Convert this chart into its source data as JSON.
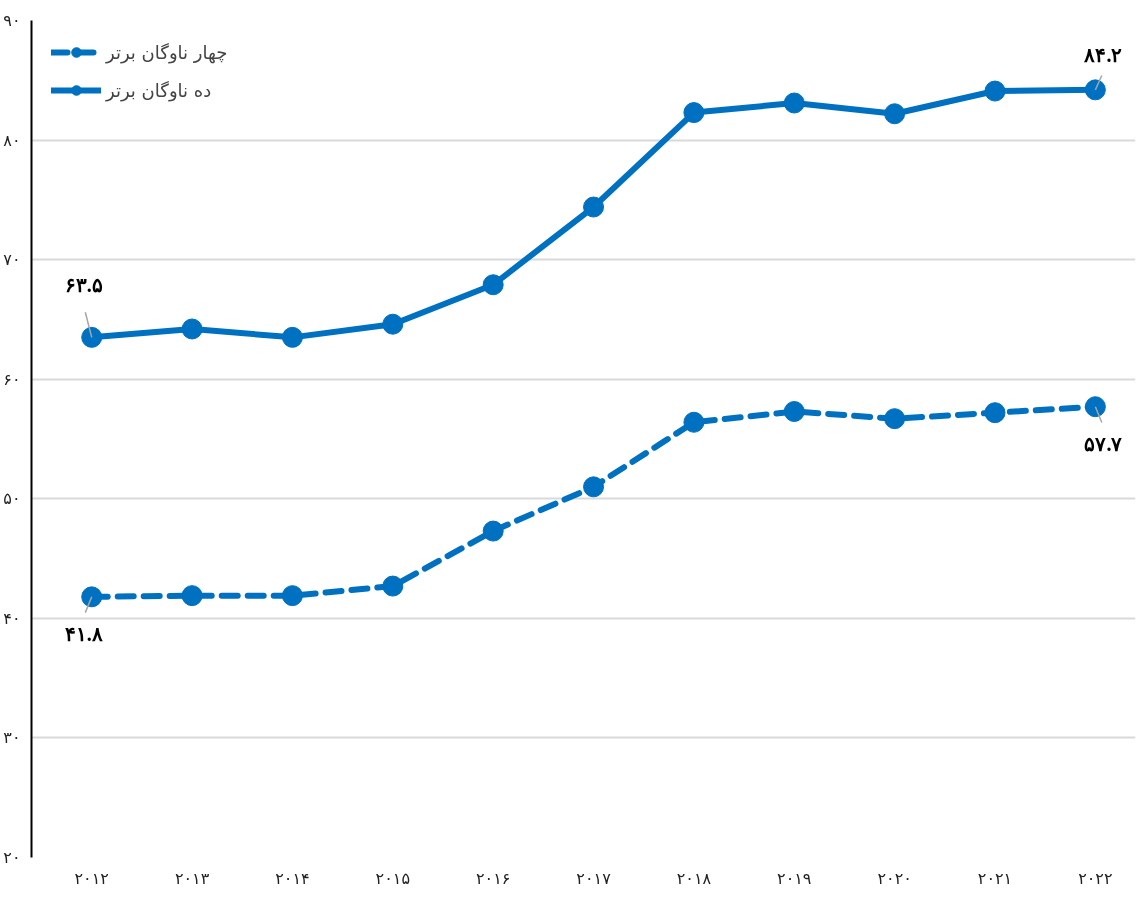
{
  "chart_data": {
    "type": "line",
    "categories": [
      "۲۰۱۲",
      "۲۰۱۳",
      "۲۰۱۴",
      "۲۰۱۵",
      "۲۰۱۶",
      "۲۰۱۷",
      "۲۰۱۸",
      "۲۰۱۹",
      "۲۰۲۰",
      "۲۰۲۱",
      "۲۰۲۲"
    ],
    "series": [
      {
        "name": "چهار ناوگان برتر",
        "color": "#0070c0",
        "line_style": "dashed",
        "values": [
          41.8,
          41.9,
          41.9,
          42.7,
          47.3,
          51.0,
          56.4,
          57.3,
          56.7,
          57.2,
          57.7
        ],
        "value_labels": [
          "۴۱.۸",
          null,
          null,
          null,
          null,
          null,
          null,
          null,
          null,
          null,
          "۵۷.۷"
        ]
      },
      {
        "name": "ده ناوگان برتر",
        "color": "#0070c0",
        "line_style": "solid",
        "values": [
          63.5,
          64.2,
          63.5,
          64.6,
          67.9,
          74.4,
          82.3,
          83.1,
          82.2,
          84.1,
          84.2
        ],
        "value_labels": [
          "۶۳.۵",
          null,
          null,
          null,
          null,
          null,
          null,
          null,
          null,
          null,
          "۸۴.۲"
        ]
      }
    ],
    "ylim": [
      20,
      90
    ],
    "yticks": [
      {
        "value": 20,
        "label": "۲۰"
      },
      {
        "value": 30,
        "label": "۳۰"
      },
      {
        "value": 40,
        "label": "۴۰"
      },
      {
        "value": 50,
        "label": "۵۰"
      },
      {
        "value": 60,
        "label": "۶۰"
      },
      {
        "value": 70,
        "label": "۷۰"
      },
      {
        "value": 80,
        "label": "۸۰"
      },
      {
        "value": 90,
        "label": "۹۰"
      }
    ],
    "grid": "y",
    "legend": "top left",
    "marker": "circle"
  }
}
